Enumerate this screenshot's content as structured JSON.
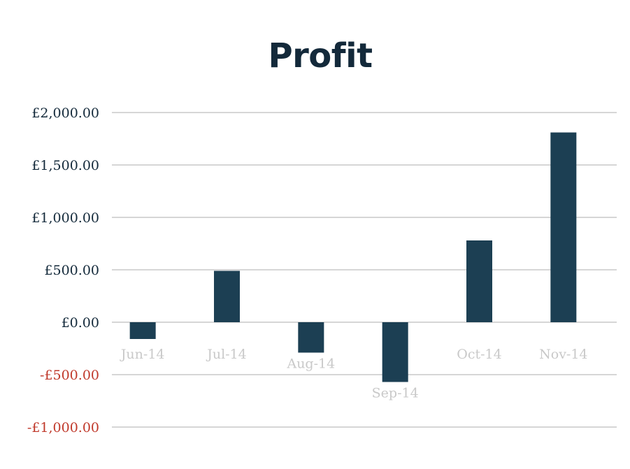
{
  "chart_data": {
    "type": "bar",
    "title": "Profit",
    "xlabel": "",
    "ylabel": "",
    "categories": [
      "Jun-14",
      "Jul-14",
      "Aug-14",
      "Sep-14",
      "Oct-14",
      "Nov-14"
    ],
    "values": [
      -160,
      490,
      -290,
      -570,
      780,
      1810
    ],
    "ylim": [
      -1000,
      2000
    ],
    "yticks": [
      2000,
      1500,
      1000,
      500,
      0,
      -500,
      -1000
    ],
    "ytick_labels": [
      "£2,000.00",
      "£1,500.00",
      "£1,000.00",
      "£500.00",
      "£0.00",
      "-£500.00",
      "-£1,000.00"
    ],
    "grid": true,
    "legend": "none",
    "colors": {
      "bar": "#1c3f53",
      "title": "#13293a",
      "positive_tick": "#13293a",
      "negative_tick": "#c0392b",
      "category_label": "#c9c9c9",
      "gridline": "#c8c8c8"
    }
  }
}
